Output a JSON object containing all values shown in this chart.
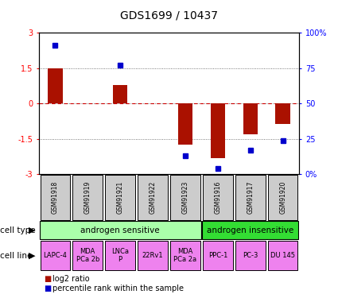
{
  "title": "GDS1699 / 10437",
  "samples": [
    "GSM91918",
    "GSM91919",
    "GSM91921",
    "GSM91922",
    "GSM91923",
    "GSM91916",
    "GSM91917",
    "GSM91920"
  ],
  "log2_ratio": [
    1.5,
    0.0,
    0.8,
    0.0,
    -1.75,
    -2.3,
    -1.3,
    -0.85
  ],
  "percentile_rank": [
    91,
    null,
    77,
    null,
    13,
    4,
    17,
    24
  ],
  "cell_type_groups": [
    {
      "label": "androgen sensitive",
      "start": 0,
      "end": 5,
      "color": "#aaffaa"
    },
    {
      "label": "androgen insensitive",
      "start": 5,
      "end": 8,
      "color": "#33dd33"
    }
  ],
  "cell_lines": [
    {
      "label": "LAPC-4",
      "col": 0
    },
    {
      "label": "MDA\nPCa 2b",
      "col": 1
    },
    {
      "label": "LNCa\nP",
      "col": 2
    },
    {
      "label": "22Rv1",
      "col": 3
    },
    {
      "label": "MDA\nPCa 2a",
      "col": 4
    },
    {
      "label": "PPC-1",
      "col": 5
    },
    {
      "label": "PC-3",
      "col": 6
    },
    {
      "label": "DU 145",
      "col": 7
    }
  ],
  "cell_line_color": "#ee82ee",
  "bar_color": "#aa1100",
  "dot_color": "#0000cc",
  "ylim_left": [
    -3,
    3
  ],
  "ylim_right": [
    0,
    100
  ],
  "yticks_left": [
    -3,
    -1.5,
    0,
    1.5,
    3
  ],
  "yticks_right": [
    0,
    25,
    50,
    75,
    100
  ],
  "ytick_labels_left": [
    "-3",
    "-1.5",
    "0",
    "1.5",
    "3"
  ],
  "ytick_labels_right": [
    "0%",
    "25",
    "50",
    "75",
    "100%"
  ],
  "hline_color": "#cc0000",
  "dotline_color": "#555555",
  "legend_red_label": "log2 ratio",
  "legend_blue_label": "percentile rank within the sample",
  "cell_type_label": "cell type",
  "cell_line_label": "cell line",
  "sample_box_color": "#cccccc",
  "title_fontsize": 10,
  "tick_fontsize": 7,
  "sample_fontsize": 5.5,
  "celltype_fontsize": 7.5,
  "celline_fontsize": 6,
  "legend_fontsize": 7,
  "label_fontsize": 7.5
}
